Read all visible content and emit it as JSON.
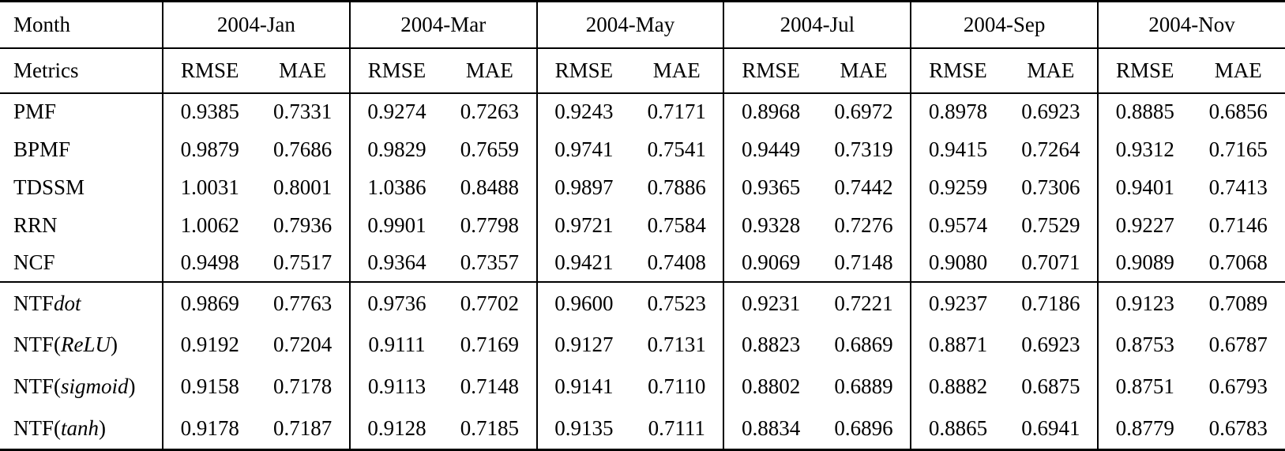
{
  "table": {
    "corner": {
      "month": "Month",
      "metrics": "Metrics"
    },
    "months": [
      "2004-Jan",
      "2004-Mar",
      "2004-May",
      "2004-Jul",
      "2004-Sep",
      "2004-Nov"
    ],
    "metric_headers": [
      "RMSE",
      "MAE"
    ],
    "colors": {
      "text": "#000000",
      "rule": "#000000",
      "background": "#ffffff"
    },
    "groups": [
      {
        "rows": [
          {
            "label": [
              "PMF",
              "",
              ""
            ],
            "values": [
              "0.9385",
              "0.7331",
              "0.9274",
              "0.7263",
              "0.9243",
              "0.7171",
              "0.8968",
              "0.6972",
              "0.8978",
              "0.6923",
              "0.8885",
              "0.6856"
            ]
          },
          {
            "label": [
              "BPMF",
              "",
              ""
            ],
            "values": [
              "0.9879",
              "0.7686",
              "0.9829",
              "0.7659",
              "0.9741",
              "0.7541",
              "0.9449",
              "0.7319",
              "0.9415",
              "0.7264",
              "0.9312",
              "0.7165"
            ]
          },
          {
            "label": [
              "TDSSM",
              "",
              ""
            ],
            "values": [
              "1.0031",
              "0.8001",
              "1.0386",
              "0.8488",
              "0.9897",
              "0.7886",
              "0.9365",
              "0.7442",
              "0.9259",
              "0.7306",
              "0.9401",
              "0.7413"
            ]
          },
          {
            "label": [
              "RRN",
              "",
              ""
            ],
            "values": [
              "1.0062",
              "0.7936",
              "0.9901",
              "0.7798",
              "0.9721",
              "0.7584",
              "0.9328",
              "0.7276",
              "0.9574",
              "0.7529",
              "0.9227",
              "0.7146"
            ]
          },
          {
            "label": [
              "NCF",
              "",
              ""
            ],
            "values": [
              "0.9498",
              "0.7517",
              "0.9364",
              "0.7357",
              "0.9421",
              "0.7408",
              "0.9069",
              "0.7148",
              "0.9080",
              "0.7071",
              "0.9089",
              "0.7068"
            ]
          }
        ]
      },
      {
        "rows": [
          {
            "label": [
              "NTF",
              "dot",
              ""
            ],
            "values": [
              "0.9869",
              "0.7763",
              "0.9736",
              "0.7702",
              "0.9600",
              "0.7523",
              "0.9231",
              "0.7221",
              "0.9237",
              "0.7186",
              "0.9123",
              "0.7089"
            ]
          },
          {
            "label": [
              "NTF(",
              "ReLU",
              ")"
            ],
            "values": [
              "0.9192",
              "0.7204",
              "0.9111",
              "0.7169",
              "0.9127",
              "0.7131",
              "0.8823",
              "0.6869",
              "0.8871",
              "0.6923",
              "0.8753",
              "0.6787"
            ]
          },
          {
            "label": [
              "NTF(",
              "sigmoid",
              ")"
            ],
            "values": [
              "0.9158",
              "0.7178",
              "0.9113",
              "0.7148",
              "0.9141",
              "0.7110",
              "0.8802",
              "0.6889",
              "0.8882",
              "0.6875",
              "0.8751",
              "0.6793"
            ]
          },
          {
            "label": [
              "NTF(",
              "tanh",
              ")"
            ],
            "values": [
              "0.9178",
              "0.7187",
              "0.9128",
              "0.7185",
              "0.9135",
              "0.7111",
              "0.8834",
              "0.6896",
              "0.8865",
              "0.6941",
              "0.8779",
              "0.6783"
            ]
          }
        ]
      }
    ]
  }
}
